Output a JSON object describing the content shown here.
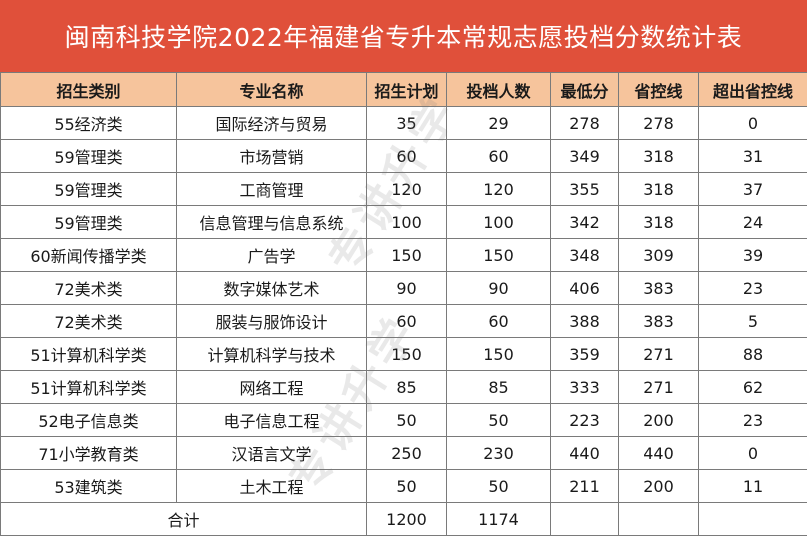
{
  "title": "闽南科技学院2022年福建省专升本常规志愿投档分数统计表",
  "watermark": "专讲升学",
  "colors": {
    "title_bg": "#e0503a",
    "header_bg": "#f6c49c",
    "border": "#7a7a7a"
  },
  "headers": [
    "招生类别",
    "专业名称",
    "招生计划",
    "投档人数",
    "最低分",
    "省控线",
    "超出省控线"
  ],
  "rows": [
    [
      "55经济类",
      "国际经济与贸易",
      "35",
      "29",
      "278",
      "278",
      "0"
    ],
    [
      "59管理类",
      "市场营销",
      "60",
      "60",
      "349",
      "318",
      "31"
    ],
    [
      "59管理类",
      "工商管理",
      "120",
      "120",
      "355",
      "318",
      "37"
    ],
    [
      "59管理类",
      "信息管理与信息系统",
      "100",
      "100",
      "342",
      "318",
      "24"
    ],
    [
      "60新闻传播学类",
      "广告学",
      "150",
      "150",
      "348",
      "309",
      "39"
    ],
    [
      "72美术类",
      "数字媒体艺术",
      "90",
      "90",
      "406",
      "383",
      "23"
    ],
    [
      "72美术类",
      "服装与服饰设计",
      "60",
      "60",
      "388",
      "383",
      "5"
    ],
    [
      "51计算机科学类",
      "计算机科学与技术",
      "150",
      "150",
      "359",
      "271",
      "88"
    ],
    [
      "51计算机科学类",
      "网络工程",
      "85",
      "85",
      "333",
      "271",
      "62"
    ],
    [
      "52电子信息类",
      "电子信息工程",
      "50",
      "50",
      "223",
      "200",
      "23"
    ],
    [
      "71小学教育类",
      "汉语言文学",
      "250",
      "230",
      "440",
      "440",
      "0"
    ],
    [
      "53建筑类",
      "土木工程",
      "50",
      "50",
      "211",
      "200",
      "11"
    ]
  ],
  "total": {
    "label": "合计",
    "plan": "1200",
    "admitted": "1174"
  }
}
